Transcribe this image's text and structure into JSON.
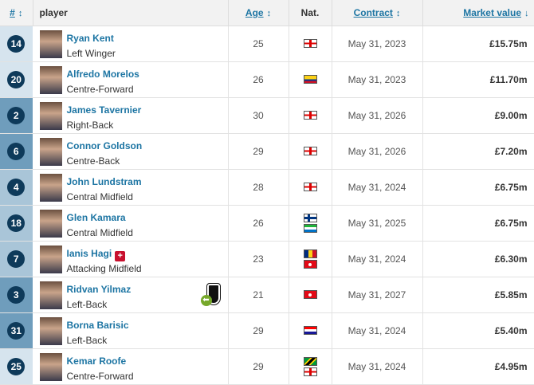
{
  "header": {
    "num": "#",
    "player": "player",
    "age": "Age",
    "nat": "Nat.",
    "contract": "Contract",
    "value": "Market value"
  },
  "colors": {
    "forward": "#d6e4ee",
    "midfield": "#a9c5d8",
    "defender": "#6f9dbc",
    "link": "#1d75a3",
    "badge": "#0e3a5a"
  },
  "rows": [
    {
      "num": "14",
      "name": "Ryan Kent",
      "position": "Left Winger",
      "age": "25",
      "flags": [
        "england"
      ],
      "contract": "May 31, 2023",
      "value": "£15.75m",
      "group": "f"
    },
    {
      "num": "20",
      "name": "Alfredo Morelos",
      "position": "Centre-Forward",
      "age": "26",
      "flags": [
        "colombia"
      ],
      "contract": "May 31, 2023",
      "value": "£11.70m",
      "group": "f"
    },
    {
      "num": "2",
      "name": "James Tavernier",
      "position": "Right-Back",
      "age": "30",
      "flags": [
        "england"
      ],
      "contract": "May 31, 2026",
      "value": "£9.00m",
      "group": "d"
    },
    {
      "num": "6",
      "name": "Connor Goldson",
      "position": "Centre-Back",
      "age": "29",
      "flags": [
        "england"
      ],
      "contract": "May 31, 2026",
      "value": "£7.20m",
      "group": "d"
    },
    {
      "num": "4",
      "name": "John Lundstram",
      "position": "Central Midfield",
      "age": "28",
      "flags": [
        "england"
      ],
      "contract": "May 31, 2024",
      "value": "£6.75m",
      "group": "m"
    },
    {
      "num": "18",
      "name": "Glen Kamara",
      "position": "Central Midfield",
      "age": "26",
      "flags": [
        "finland",
        "sierra-leone"
      ],
      "contract": "May 31, 2025",
      "value": "£6.75m",
      "group": "m"
    },
    {
      "num": "7",
      "name": "Ianis Hagi",
      "position": "Attacking Midfield",
      "age": "23",
      "flags": [
        "romania",
        "turkey"
      ],
      "contract": "May 31, 2024",
      "value": "£6.30m",
      "group": "m",
      "injury": true
    },
    {
      "num": "3",
      "name": "Ridvan Yilmaz",
      "position": "Left-Back",
      "age": "21",
      "flags": [
        "turkey"
      ],
      "contract": "May 31, 2027",
      "value": "£5.85m",
      "group": "d",
      "club_icon": "besiktas-crest"
    },
    {
      "num": "31",
      "name": "Borna Barisic",
      "position": "Left-Back",
      "age": "29",
      "flags": [
        "croatia"
      ],
      "contract": "May 31, 2024",
      "value": "£5.40m",
      "group": "d"
    },
    {
      "num": "25",
      "name": "Kemar Roofe",
      "position": "Centre-Forward",
      "age": "29",
      "flags": [
        "jamaica",
        "england"
      ],
      "contract": "May 31, 2024",
      "value": "£4.95m",
      "group": "f"
    }
  ]
}
